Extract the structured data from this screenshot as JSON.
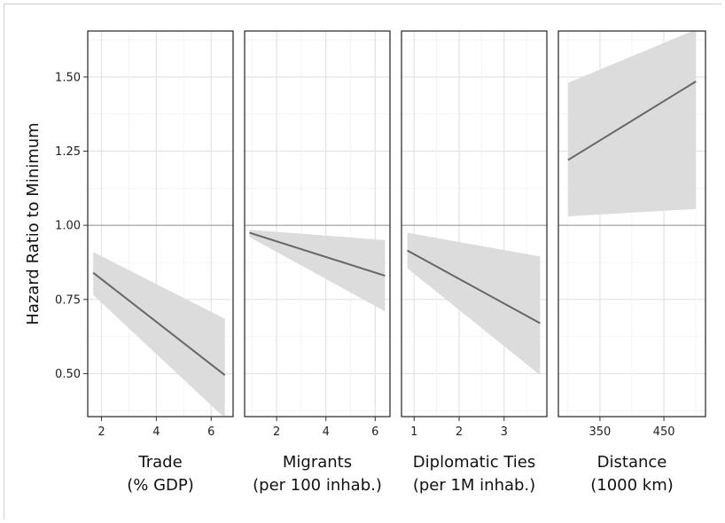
{
  "chart_data": {
    "type": "line",
    "ylabel": "Hazard Ratio to Minimum",
    "ylim": [
      0.355,
      1.655
    ],
    "yticks": [
      0.5,
      0.75,
      1.0,
      1.25,
      1.5
    ],
    "ytick_labels": [
      "0.50",
      "0.75",
      "1.00",
      "1.25",
      "1.50"
    ],
    "reference_line": 1.0,
    "grid": true,
    "panels": [
      {
        "xlabel_line1": "Trade",
        "xlabel_line2": "(% GDP)",
        "xlim": [
          1.5,
          6.8
        ],
        "xticks": [
          2,
          4,
          6
        ],
        "xtick_labels": [
          "2",
          "4",
          "6"
        ],
        "x": [
          1.7,
          6.5
        ],
        "y": [
          0.84,
          0.495
        ],
        "lower": [
          0.765,
          0.35
        ],
        "upper": [
          0.91,
          0.685
        ]
      },
      {
        "xlabel_line1": "Migrants",
        "xlabel_line2": "(per 100 inhab.)",
        "xlim": [
          0.7,
          6.6
        ],
        "xticks": [
          2,
          4,
          6
        ],
        "xtick_labels": [
          "2",
          "4",
          "6"
        ],
        "x": [
          0.9,
          6.4
        ],
        "y": [
          0.975,
          0.83
        ],
        "lower": [
          0.96,
          0.71
        ],
        "upper": [
          0.985,
          0.95
        ]
      },
      {
        "xlabel_line1": "Diplomatic Ties",
        "xlabel_line2": "(per 1M inhab.)",
        "xlim": [
          0.72,
          3.95
        ],
        "xticks": [
          1,
          2,
          3
        ],
        "xtick_labels": [
          "1",
          "2",
          "3"
        ],
        "x": [
          0.85,
          3.8
        ],
        "y": [
          0.915,
          0.67
        ],
        "lower": [
          0.855,
          0.495
        ],
        "upper": [
          0.975,
          0.895
        ]
      },
      {
        "xlabel_line1": "Distance",
        "xlabel_line2": "(1000 km)",
        "xlim": [
          285,
          515
        ],
        "xticks": [
          350,
          450
        ],
        "xtick_labels": [
          "350",
          "450"
        ],
        "x": [
          300,
          500
        ],
        "y": [
          1.22,
          1.485
        ],
        "lower": [
          1.03,
          1.055
        ],
        "upper": [
          1.48,
          1.66
        ]
      }
    ]
  }
}
